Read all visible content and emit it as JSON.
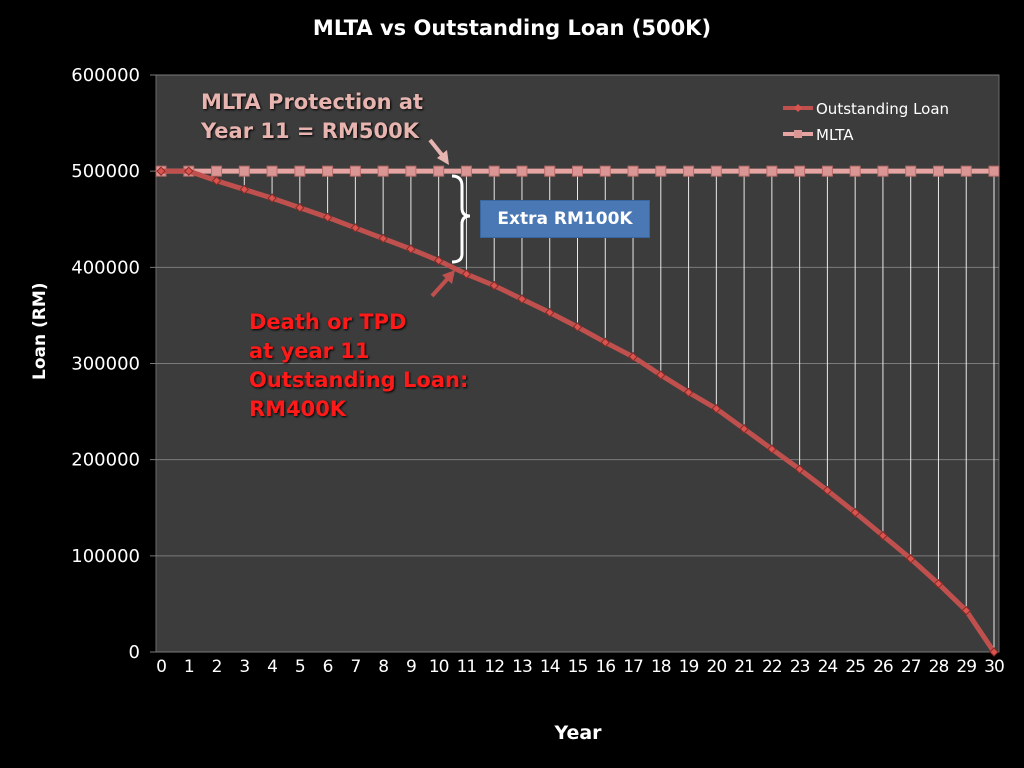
{
  "chart_data": {
    "type": "line",
    "title": "MLTA vs Outstanding Loan (500K)",
    "xlabel": "Year",
    "ylabel": "Loan (RM)",
    "x": [
      0,
      1,
      2,
      3,
      4,
      5,
      6,
      7,
      8,
      9,
      10,
      11,
      12,
      13,
      14,
      15,
      16,
      17,
      18,
      19,
      20,
      21,
      22,
      23,
      24,
      25,
      26,
      27,
      28,
      29,
      30
    ],
    "ylim": [
      0,
      600000
    ],
    "yticks": [
      "0",
      "100000",
      "200000",
      "300000",
      "400000",
      "500000",
      "600000"
    ],
    "grid": true,
    "legend_position": "top-right",
    "series": [
      {
        "name": "Outstanding Loan",
        "color": "#c0504d",
        "values": [
          500000,
          500000,
          490000,
          481000,
          472000,
          462000,
          452000,
          441000,
          430000,
          419000,
          407000,
          393000,
          381000,
          367000,
          353000,
          338000,
          322000,
          307000,
          288000,
          270000,
          253000,
          232000,
          211000,
          190000,
          168000,
          145000,
          121000,
          97000,
          71000,
          43000,
          0
        ]
      },
      {
        "name": "MLTA",
        "color": "#e6a5a3",
        "values": [
          500000,
          500000,
          500000,
          500000,
          500000,
          500000,
          500000,
          500000,
          500000,
          500000,
          500000,
          500000,
          500000,
          500000,
          500000,
          500000,
          500000,
          500000,
          500000,
          500000,
          500000,
          500000,
          500000,
          500000,
          500000,
          500000,
          500000,
          500000,
          500000,
          500000,
          500000
        ]
      }
    ],
    "annotations": [
      {
        "text": "MLTA Protection at Year 11 = RM500K",
        "color": "#e8b4b0"
      },
      {
        "text": "Extra RM100K",
        "color": "#4a78b5"
      },
      {
        "text": "Death or TPD at year 11 Outstanding Loan: RM400K",
        "color": "#ff1a1a"
      }
    ]
  },
  "annotations": {
    "mlta_line1": "MLTA Protection at",
    "mlta_line2": "Year 11 = RM500K",
    "extra": "Extra RM100K",
    "death_line1": "Death or TPD",
    "death_line2": "at year 11",
    "death_line3": "Outstanding Loan:",
    "death_line4": "RM400K"
  }
}
